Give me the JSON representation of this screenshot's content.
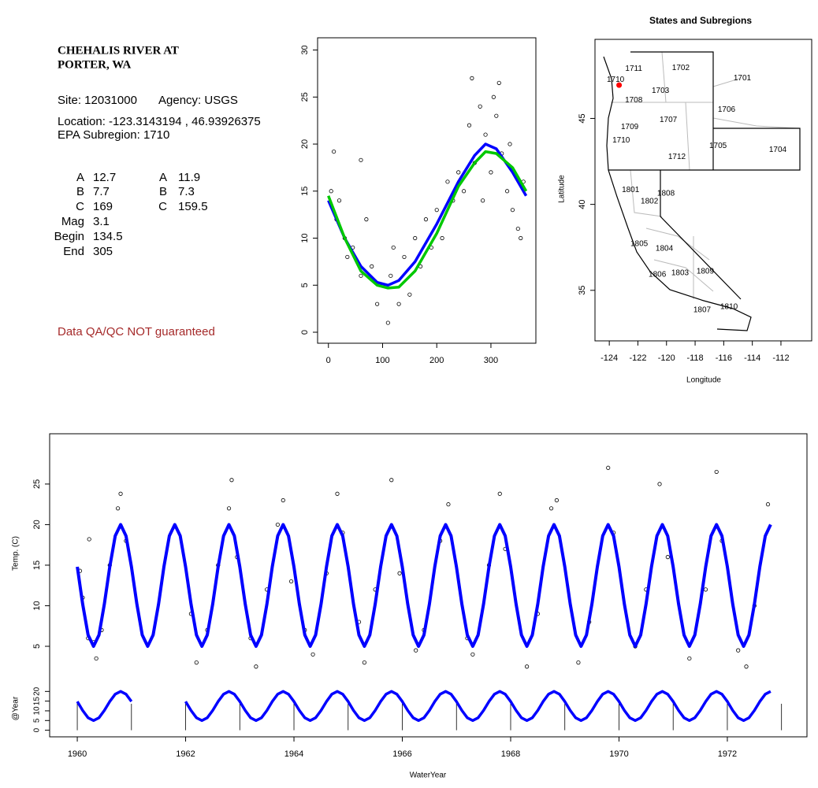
{
  "info": {
    "title_lines": [
      "CHEHALIS RIVER AT",
      "PORTER, WA"
    ],
    "site": "Site: 12031000",
    "agency": "Agency: USGS",
    "location": "Location: -123.3143194 , 46.93926375",
    "subregion": "EPA Subregion: 1710",
    "params": {
      "labels": [
        "A",
        "B",
        "C",
        "Mag",
        "Begin",
        "End"
      ],
      "fit1": [
        12.7,
        7.7,
        169,
        3.1,
        134.5,
        305
      ],
      "fit2_labels": [
        "A",
        "B",
        "C"
      ],
      "fit2": [
        11.9,
        7.3,
        159.5
      ]
    },
    "note": "Data QA/QC NOT guaranteed"
  },
  "chart_data": [
    {
      "type": "scatter",
      "point_color": "#000000",
      "x": [
        5,
        10,
        15,
        20,
        30,
        35,
        45,
        60,
        60,
        70,
        80,
        90,
        100,
        110,
        115,
        120,
        130,
        140,
        150,
        160,
        170,
        180,
        190,
        200,
        210,
        220,
        230,
        240,
        250,
        260,
        265,
        270,
        280,
        285,
        290,
        300,
        305,
        310,
        315,
        320,
        330,
        335,
        340,
        350,
        355,
        360
      ],
      "values": [
        15,
        19.2,
        12,
        14,
        10,
        8,
        9,
        18.3,
        6,
        12,
        7,
        3,
        5,
        1,
        6,
        9,
        3,
        8,
        4,
        10,
        7,
        12,
        9,
        13,
        10,
        16,
        14,
        17,
        15,
        22,
        27,
        18,
        24,
        14,
        21,
        17,
        25,
        23,
        26.5,
        19,
        15,
        20,
        13,
        11,
        10,
        16
      ],
      "fits": [
        {
          "color": "#0000ff",
          "x": [
            0,
            30,
            60,
            90,
            110,
            130,
            160,
            200,
            240,
            270,
            290,
            310,
            340,
            365
          ],
          "values": [
            14,
            10,
            7,
            5.3,
            5,
            5.5,
            7.5,
            11.5,
            16,
            18.8,
            20,
            19.5,
            17,
            14.5
          ]
        },
        {
          "color": "#00c800",
          "x": [
            0,
            30,
            60,
            90,
            110,
            130,
            160,
            200,
            240,
            270,
            290,
            310,
            340,
            365
          ],
          "values": [
            14.5,
            10,
            6.5,
            5,
            4.7,
            4.8,
            6.5,
            10.5,
            15.5,
            18,
            19.2,
            19,
            17.5,
            15
          ]
        }
      ],
      "xlim": [
        -20,
        383
      ],
      "ylim": [
        -1.17,
        31.3
      ],
      "xticks": [
        0,
        100,
        200,
        300
      ],
      "yticks": [
        0,
        5,
        10,
        15,
        20,
        25,
        30
      ]
    },
    {
      "type": "map",
      "title": "States and Subregions",
      "xlabel": "Longitude",
      "ylabel": "Latitude",
      "xlim": [
        -125,
        -109.85
      ],
      "ylim": [
        32.06,
        49.6
      ],
      "xticks": [
        -124,
        -122,
        -120,
        -118,
        -116,
        -114,
        -112
      ],
      "yticks": [
        35,
        40,
        45
      ],
      "regions": [
        {
          "label": "1711",
          "lon": -122.29,
          "lat": 47.89
        },
        {
          "label": "1710",
          "lon": -123.56,
          "lat": 47.25
        },
        {
          "label": "1702",
          "lon": -119.0,
          "lat": 47.94
        },
        {
          "label": "1701",
          "lon": -114.7,
          "lat": 47.34
        },
        {
          "label": "1703",
          "lon": -120.42,
          "lat": 46.61
        },
        {
          "label": "1708",
          "lon": -122.29,
          "lat": 46.06
        },
        {
          "label": "1706",
          "lon": -115.8,
          "lat": 45.5
        },
        {
          "label": "1707",
          "lon": -119.87,
          "lat": 44.91
        },
        {
          "label": "1709",
          "lon": -122.57,
          "lat": 44.5
        },
        {
          "label": "1710",
          "lon": -123.17,
          "lat": 43.72
        },
        {
          "label": "1705",
          "lon": -116.4,
          "lat": 43.39
        },
        {
          "label": "1704",
          "lon": -112.22,
          "lat": 43.17
        },
        {
          "label": "1712",
          "lon": -119.27,
          "lat": 42.75
        },
        {
          "label": "1801",
          "lon": -122.51,
          "lat": 40.83
        },
        {
          "label": "1808",
          "lon": -120.04,
          "lat": 40.64
        },
        {
          "label": "1802",
          "lon": -121.19,
          "lat": 40.18
        },
        {
          "label": "1805",
          "lon": -121.91,
          "lat": 37.71
        },
        {
          "label": "1804",
          "lon": -120.15,
          "lat": 37.43
        },
        {
          "label": "1806",
          "lon": -120.64,
          "lat": 35.92
        },
        {
          "label": "1803",
          "lon": -119.05,
          "lat": 36.01
        },
        {
          "label": "1809",
          "lon": -117.29,
          "lat": 36.1
        },
        {
          "label": "1810",
          "lon": -115.63,
          "lat": 34.04
        },
        {
          "label": "1807",
          "lon": -117.51,
          "lat": 33.85
        }
      ],
      "site": {
        "lon": -123.3143194,
        "lat": 46.93926375,
        "color": "#ff0000"
      }
    },
    {
      "type": "scatter",
      "ylabel": "Temp. (C)",
      "point_color": "#000000",
      "x": [
        1960.05,
        1960.1,
        1960.2,
        1960.22,
        1960.3,
        1960.35,
        1960.45,
        1960.6,
        1960.75,
        1960.8,
        1960.9,
        1962.1,
        1962.2,
        1962.4,
        1962.6,
        1962.8,
        1962.85,
        1962.95,
        1963.2,
        1963.3,
        1963.5,
        1963.7,
        1963.8,
        1963.95,
        1964.2,
        1964.35,
        1964.6,
        1964.8,
        1964.9,
        1965.2,
        1965.3,
        1965.5,
        1965.8,
        1965.95,
        1966.25,
        1966.4,
        1966.7,
        1966.85,
        1967.2,
        1967.3,
        1967.6,
        1967.8,
        1967.9,
        1968.3,
        1968.5,
        1968.75,
        1968.85,
        1969.25,
        1969.45,
        1969.8,
        1969.9,
        1970.3,
        1970.5,
        1970.75,
        1970.9,
        1971.3,
        1971.6,
        1971.8,
        1971.9,
        1972.2,
        1972.35,
        1972.5,
        1972.75
      ],
      "values": [
        14.3,
        11,
        6,
        18.2,
        5.5,
        3.5,
        7,
        15,
        22,
        23.8,
        18,
        9,
        3,
        7,
        15,
        22,
        25.5,
        16,
        6,
        2.5,
        12,
        20,
        23,
        13,
        7,
        4,
        14,
        23.8,
        19,
        8,
        3,
        12,
        25.5,
        14,
        4.5,
        7,
        18,
        22.5,
        6,
        4,
        15,
        23.8,
        17,
        2.5,
        9,
        22,
        23,
        3,
        8,
        27,
        19,
        5,
        12,
        25,
        16,
        3.5,
        12,
        26.5,
        18,
        4.5,
        2.5,
        10,
        22.5
      ],
      "fits": [
        {
          "color": "#0000ff",
          "x": [
            1960,
            1960.1,
            1960.2,
            1960.3,
            1960.4,
            1960.5,
            1960.6,
            1960.7,
            1960.8,
            1960.9,
            1961,
            1961.1,
            1961.2,
            1961.3,
            1961.4,
            1961.5,
            1961.6,
            1961.7,
            1961.8,
            1961.9,
            1962,
            1962.1,
            1962.2,
            1962.3,
            1962.4,
            1962.5,
            1962.6,
            1962.7,
            1962.8,
            1962.9,
            1963,
            1963.1,
            1963.2,
            1963.3,
            1963.4,
            1963.5,
            1963.6,
            1963.7,
            1963.8,
            1963.9,
            1964,
            1964.1,
            1964.2,
            1964.3,
            1964.4,
            1964.5,
            1964.6,
            1964.7,
            1964.8,
            1964.9,
            1965,
            1965.1,
            1965.2,
            1965.3,
            1965.4,
            1965.5,
            1965.6,
            1965.7,
            1965.8,
            1965.9,
            1966,
            1966.1,
            1966.2,
            1966.3,
            1966.4,
            1966.5,
            1966.6,
            1966.7,
            1966.8,
            1966.9,
            1967,
            1967.1,
            1967.2,
            1967.3,
            1967.4,
            1967.5,
            1967.6,
            1967.7,
            1967.8,
            1967.9,
            1968,
            1968.1,
            1968.2,
            1968.3,
            1968.4,
            1968.5,
            1968.6,
            1968.7,
            1968.8,
            1968.9,
            1969,
            1969.1,
            1969.2,
            1969.3,
            1969.4,
            1969.5,
            1969.6,
            1969.7,
            1969.8,
            1969.9,
            1970,
            1970.1,
            1970.2,
            1970.3,
            1970.4,
            1970.5,
            1970.6,
            1970.7,
            1970.8,
            1970.9,
            1971,
            1971.1,
            1971.2,
            1971.3,
            1971.4,
            1971.5,
            1971.6,
            1971.7,
            1971.8,
            1971.9,
            1972,
            1972.1,
            1972.2,
            1972.3,
            1972.4,
            1972.5,
            1972.6,
            1972.7,
            1972.8
          ],
          "values": [
            14.8,
            10.2,
            6.4,
            5,
            6.4,
            10.2,
            14.8,
            18.6,
            20,
            18.6,
            14.8,
            10.2,
            6.4,
            5,
            6.4,
            10.2,
            14.8,
            18.6,
            20,
            18.6,
            14.8,
            10.2,
            6.4,
            5,
            6.4,
            10.2,
            14.8,
            18.6,
            20,
            18.6,
            14.8,
            10.2,
            6.4,
            5,
            6.4,
            10.2,
            14.8,
            18.6,
            20,
            18.6,
            14.8,
            10.2,
            6.4,
            5,
            6.4,
            10.2,
            14.8,
            18.6,
            20,
            18.6,
            14.8,
            10.2,
            6.4,
            5,
            6.4,
            10.2,
            14.8,
            18.6,
            20,
            18.6,
            14.8,
            10.2,
            6.4,
            5,
            6.4,
            10.2,
            14.8,
            18.6,
            20,
            18.6,
            14.8,
            10.2,
            6.4,
            5,
            6.4,
            10.2,
            14.8,
            18.6,
            20,
            18.6,
            14.8,
            10.2,
            6.4,
            5,
            6.4,
            10.2,
            14.8,
            18.6,
            20,
            18.6,
            14.8,
            10.2,
            6.4,
            5,
            6.4,
            10.2,
            14.8,
            18.6,
            20,
            18.6,
            14.8,
            10.2,
            6.4,
            5,
            6.4,
            10.2,
            14.8,
            18.6,
            20,
            18.6,
            14.8,
            10.2,
            6.4,
            5,
            6.4,
            10.2,
            14.8,
            18.6,
            20,
            18.6,
            14.8,
            10.2,
            6.4,
            5,
            6.4,
            10.2,
            14.8,
            18.6,
            20
          ]
        }
      ],
      "xlim": [
        1959.49,
        1973.47
      ],
      "ylim": [
        1.7,
        31.2
      ],
      "yticks": [
        5,
        10,
        15,
        20,
        25
      ]
    },
    {
      "type": "line",
      "ylabel": "@Year",
      "xlabel": "WaterYear",
      "color": "#0000ff",
      "x": [
        1960,
        1960.1,
        1960.2,
        1960.3,
        1960.4,
        1960.5,
        1960.6,
        1960.7,
        1960.8,
        1960.9,
        1961,
        1961.1,
        1961.2,
        1961.3,
        1961.4,
        1961.5,
        1961.6,
        1961.7,
        1961.8,
        1961.9,
        1962,
        1962.1,
        1962.2,
        1962.3,
        1962.4,
        1962.5,
        1962.6,
        1962.7,
        1962.8,
        1962.9,
        1963,
        1963.1,
        1963.2,
        1963.3,
        1963.4,
        1963.5,
        1963.6,
        1963.7,
        1963.8,
        1963.9,
        1964,
        1964.1,
        1964.2,
        1964.3,
        1964.4,
        1964.5,
        1964.6,
        1964.7,
        1964.8,
        1964.9,
        1965,
        1965.1,
        1965.2,
        1965.3,
        1965.4,
        1965.5,
        1965.6,
        1965.7,
        1965.8,
        1965.9,
        1966,
        1966.1,
        1966.2,
        1966.3,
        1966.4,
        1966.5,
        1966.6,
        1966.7,
        1966.8,
        1966.9,
        1967,
        1967.1,
        1967.2,
        1967.3,
        1967.4,
        1967.5,
        1967.6,
        1967.7,
        1967.8,
        1967.9,
        1968,
        1968.1,
        1968.2,
        1968.3,
        1968.4,
        1968.5,
        1968.6,
        1968.7,
        1968.8,
        1968.9,
        1969,
        1969.1,
        1969.2,
        1969.3,
        1969.4,
        1969.5,
        1969.6,
        1969.7,
        1969.8,
        1969.9,
        1970,
        1970.1,
        1970.2,
        1970.3,
        1970.4,
        1970.5,
        1970.6,
        1970.7,
        1970.8,
        1970.9,
        1971,
        1971.1,
        1971.2,
        1971.3,
        1971.4,
        1971.5,
        1971.6,
        1971.7,
        1971.8,
        1971.9,
        1972,
        1972.1,
        1972.2,
        1972.3,
        1972.4,
        1972.5,
        1972.6,
        1972.7,
        1972.8
      ],
      "values": [
        14.8,
        10.2,
        6.4,
        5,
        6.4,
        10.2,
        14.8,
        18.6,
        20,
        18.6,
        14.8,
        null,
        null,
        null,
        null,
        null,
        null,
        null,
        null,
        null,
        14.8,
        10.2,
        6.4,
        5,
        6.4,
        10.2,
        14.8,
        18.6,
        20,
        18.6,
        14.8,
        10.2,
        6.4,
        5,
        6.4,
        10.2,
        14.8,
        18.6,
        20,
        18.6,
        14.8,
        10.2,
        6.4,
        5,
        6.4,
        10.2,
        14.8,
        18.6,
        20,
        18.6,
        14.8,
        10.2,
        6.4,
        5,
        6.4,
        10.2,
        14.8,
        18.6,
        20,
        18.6,
        14.8,
        10.2,
        6.4,
        5,
        6.4,
        10.2,
        14.8,
        18.6,
        20,
        18.6,
        14.8,
        10.2,
        6.4,
        5,
        6.4,
        10.2,
        14.8,
        18.6,
        20,
        18.6,
        14.8,
        10.2,
        6.4,
        5,
        6.4,
        10.2,
        14.8,
        18.6,
        20,
        18.6,
        14.8,
        10.2,
        6.4,
        5,
        6.4,
        10.2,
        14.8,
        18.6,
        20,
        18.6,
        14.8,
        10.2,
        6.4,
        5,
        6.4,
        10.2,
        14.8,
        18.6,
        20,
        18.6,
        14.8,
        10.2,
        6.4,
        5,
        6.4,
        10.2,
        14.8,
        18.6,
        20,
        18.6,
        14.8,
        10.2,
        6.4,
        5,
        6.4,
        10.2,
        14.8,
        18.6,
        20
      ],
      "year_breaks": [
        1960,
        1961,
        1962,
        1963,
        1964,
        1965,
        1966,
        1967,
        1968,
        1969,
        1970,
        1971,
        1972,
        1973
      ],
      "xlim": [
        1959.49,
        1973.47
      ],
      "ylim": [
        -3,
        25
      ],
      "xticks": [
        1960,
        1962,
        1964,
        1966,
        1968,
        1970,
        1972
      ],
      "yticks": [
        0,
        5,
        10,
        15,
        20
      ]
    }
  ]
}
